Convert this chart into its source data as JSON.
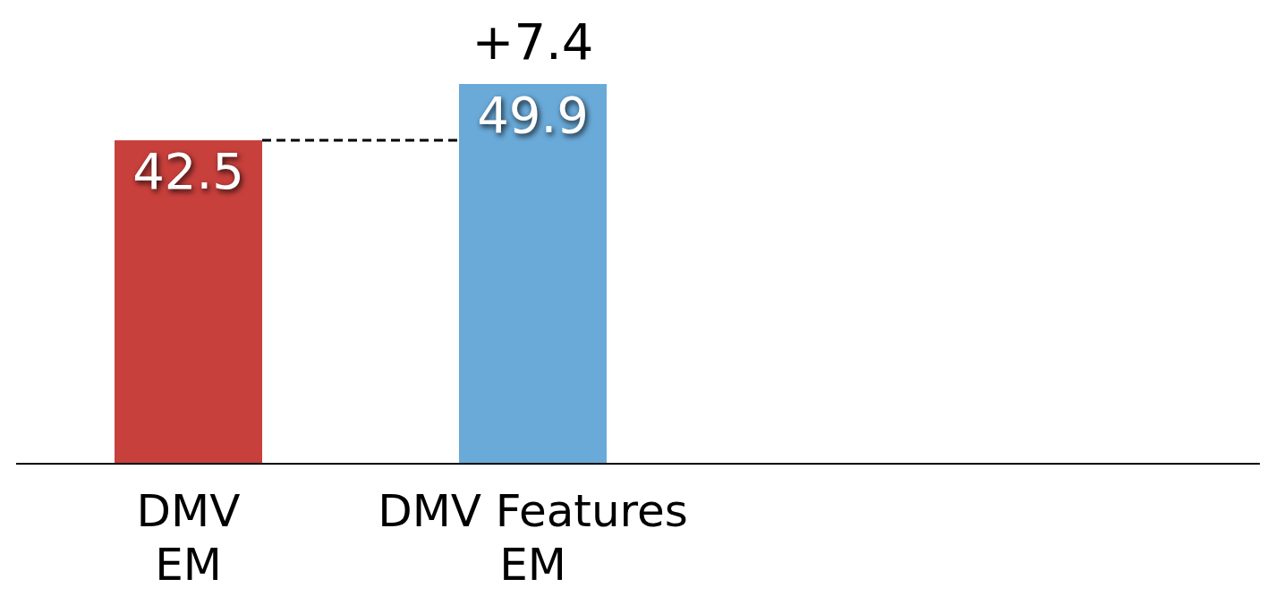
{
  "chart_data": {
    "type": "bar",
    "categories": [
      "DMV EM",
      "DMV Features EM"
    ],
    "values": [
      42.5,
      49.9
    ],
    "colors": [
      "#c8403c",
      "#6aaad9"
    ],
    "data_labels": true,
    "annotations": [
      {
        "text": "+7.4",
        "x": "DMV Features EM",
        "y": 49.9
      }
    ],
    "ref_lines": [
      {
        "axis": "y",
        "value": 42.5,
        "color": "#000000",
        "line_style": "dashed"
      }
    ]
  }
}
